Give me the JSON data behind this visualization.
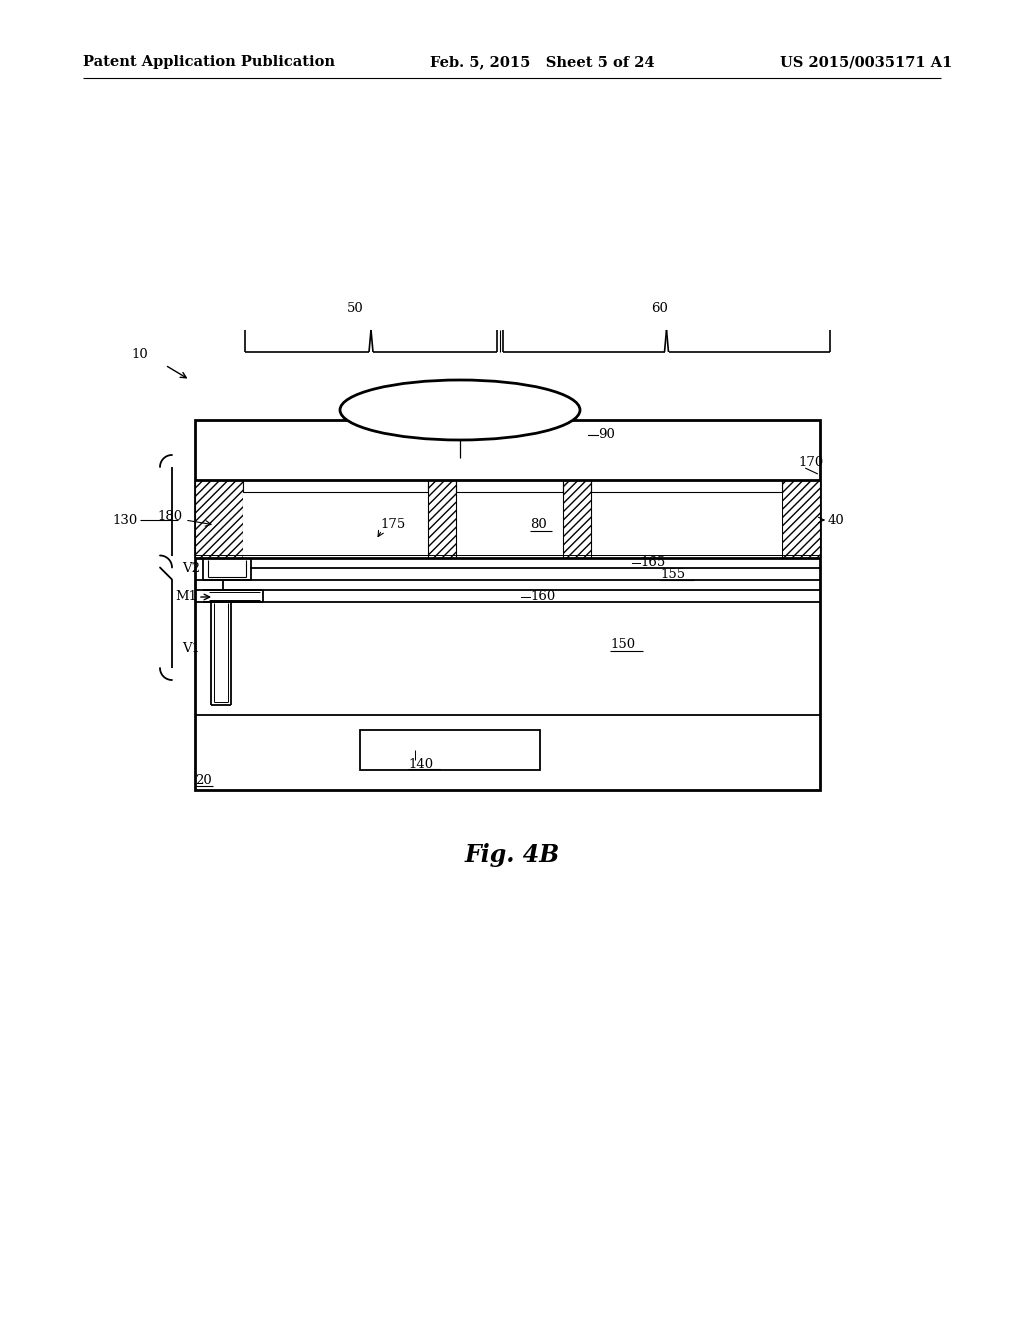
{
  "bg_color": "#ffffff",
  "header_left": "Patent Application Publication",
  "header_mid": "Feb. 5, 2015   Sheet 5 of 24",
  "header_right": "US 2015/0035171 A1",
  "fig_label": "Fig. 4B",
  "lw": 1.3,
  "lw2": 2.0,
  "fs_header": 10.5,
  "fs_label": 9.5,
  "black": "#000000"
}
